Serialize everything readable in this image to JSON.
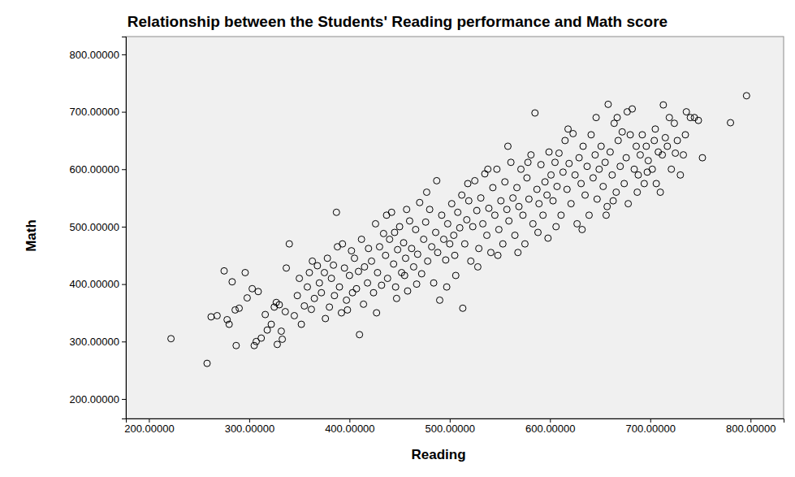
{
  "chart_data": {
    "type": "scatter",
    "title": "Relationship between the Students' Reading performance and Math score",
    "x_label": "Reading",
    "y_label": "Math",
    "color": "#000000",
    "marker": "open-circle",
    "grid": false,
    "xlim": [
      177,
      833
    ],
    "ylim": [
      166,
      831
    ],
    "xticks": [
      {
        "value": 200,
        "label": "200.00000"
      },
      {
        "value": 300,
        "label": "300.00000"
      },
      {
        "value": 400,
        "label": "400.00000"
      },
      {
        "value": 500,
        "label": "500.00000"
      },
      {
        "value": 600,
        "label": "600.00000"
      },
      {
        "value": 700,
        "label": "700.00000"
      },
      {
        "value": 800,
        "label": "800.00000"
      }
    ],
    "yticks": [
      {
        "value": 200,
        "label": "200.00000"
      },
      {
        "value": 300,
        "label": "300.00000"
      },
      {
        "value": 400,
        "label": "400.00000"
      },
      {
        "value": 500,
        "label": "500.00000"
      },
      {
        "value": 600,
        "label": "600.00000"
      },
      {
        "value": 700,
        "label": "700.00000"
      },
      {
        "value": 800,
        "label": "800.00000"
      }
    ],
    "x": [
      222,
      258,
      262,
      268,
      275,
      278,
      283,
      286,
      287,
      290,
      298,
      303,
      305,
      307,
      309,
      312,
      316,
      318,
      322,
      325,
      328,
      330,
      332,
      333,
      336,
      337,
      340,
      327,
      296,
      280,
      345,
      348,
      352,
      355,
      358,
      360,
      362,
      365,
      368,
      370,
      372,
      375,
      378,
      380,
      382,
      385,
      387,
      388,
      390,
      392,
      395,
      397,
      400,
      402,
      405,
      407,
      410,
      412,
      415,
      418,
      350,
      363,
      376,
      384,
      393,
      398,
      403,
      409,
      414,
      419,
      422,
      424,
      426,
      428,
      430,
      432,
      434,
      436,
      438,
      440,
      442,
      444,
      446,
      448,
      450,
      452,
      454,
      456,
      458,
      460,
      462,
      464,
      466,
      468,
      470,
      472,
      474,
      476,
      478,
      480,
      482,
      484,
      486,
      488,
      490,
      492,
      494,
      496,
      498,
      500,
      427,
      437,
      447,
      457,
      467,
      477,
      487,
      497,
      445,
      455,
      502,
      504,
      506,
      508,
      510,
      512,
      513,
      515,
      517,
      519,
      521,
      523,
      525,
      527,
      529,
      531,
      533,
      535,
      537,
      539,
      541,
      543,
      545,
      547,
      549,
      551,
      553,
      555,
      557,
      559,
      561,
      563,
      565,
      567,
      569,
      571,
      573,
      575,
      577,
      579,
      581,
      583,
      585,
      587,
      589,
      591,
      593,
      595,
      597,
      599,
      505,
      518,
      528,
      538,
      548,
      558,
      568,
      578,
      588,
      598,
      601,
      603,
      605,
      607,
      609,
      611,
      613,
      615,
      617,
      619,
      621,
      623,
      625,
      627,
      629,
      631,
      633,
      635,
      637,
      639,
      641,
      643,
      645,
      647,
      649,
      651,
      653,
      655,
      657,
      658,
      660,
      662,
      664,
      666,
      668,
      670,
      672,
      674,
      676,
      678,
      680,
      682,
      684,
      686,
      688,
      690,
      692,
      694,
      696,
      698,
      606,
      618,
      632,
      646,
      656,
      667,
      677,
      687,
      697,
      663,
      702,
      704,
      706,
      708,
      710,
      713,
      715,
      717,
      719,
      721,
      724,
      727,
      730,
      733,
      736,
      740,
      744,
      748,
      752,
      780,
      796,
      705,
      712,
      725,
      735
    ],
    "values": [
      305,
      262,
      343,
      345,
      423,
      338,
      404,
      355,
      293,
      358,
      376,
      392,
      293,
      300,
      387,
      306,
      347,
      320,
      330,
      360,
      295,
      364,
      318,
      304,
      352,
      428,
      470,
      368,
      420,
      330,
      345,
      380,
      330,
      362,
      395,
      420,
      356,
      375,
      432,
      402,
      385,
      420,
      445,
      360,
      410,
      380,
      525,
      465,
      395,
      350,
      428,
      372,
      415,
      458,
      445,
      392,
      312,
      478,
      430,
      402,
      410,
      440,
      340,
      433,
      470,
      355,
      385,
      422,
      365,
      462,
      440,
      385,
      505,
      420,
      465,
      398,
      488,
      450,
      410,
      478,
      525,
      435,
      395,
      460,
      500,
      420,
      472,
      445,
      388,
      510,
      462,
      430,
      495,
      452,
      542,
      418,
      478,
      508,
      440,
      530,
      465,
      402,
      490,
      455,
      372,
      520,
      478,
      442,
      505,
      470,
      350,
      520,
      375,
      530,
      400,
      560,
      580,
      395,
      490,
      415,
      540,
      485,
      415,
      525,
      498,
      555,
      358,
      470,
      512,
      545,
      440,
      500,
      580,
      528,
      462,
      550,
      505,
      592,
      485,
      532,
      455,
      568,
      520,
      600,
      495,
      545,
      470,
      578,
      530,
      510,
      612,
      550,
      485,
      568,
      535,
      600,
      520,
      470,
      585,
      548,
      625,
      505,
      698,
      565,
      540,
      608,
      520,
      578,
      555,
      630,
      450,
      575,
      430,
      600,
      450,
      640,
      455,
      612,
      490,
      480,
      590,
      545,
      612,
      570,
      628,
      520,
      595,
      650,
      565,
      610,
      540,
      662,
      590,
      505,
      620,
      575,
      640,
      555,
      605,
      520,
      660,
      585,
      625,
      548,
      600,
      640,
      570,
      612,
      535,
      713,
      630,
      590,
      680,
      560,
      650,
      605,
      665,
      575,
      620,
      540,
      660,
      705,
      600,
      640,
      590,
      625,
      660,
      575,
      640,
      615,
      500,
      670,
      495,
      690,
      520,
      690,
      700,
      560,
      595,
      545,
      600,
      650,
      575,
      630,
      560,
      712,
      655,
      640,
      690,
      600,
      680,
      650,
      590,
      625,
      700,
      690,
      690,
      685,
      620,
      681,
      728,
      670,
      625,
      628,
      660
    ]
  }
}
